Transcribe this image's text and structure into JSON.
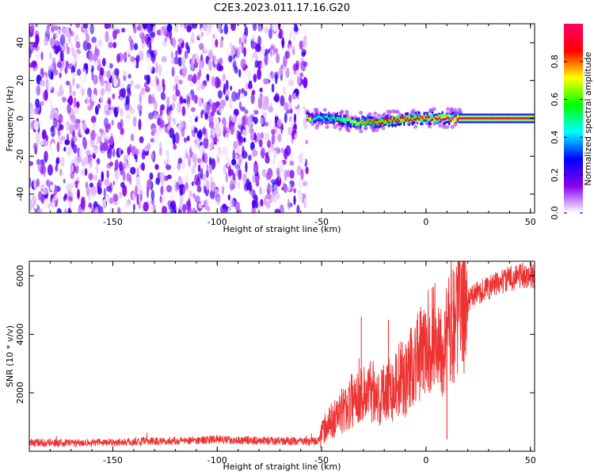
{
  "title": "C2E3.2023.011.17.16.G20",
  "chart_data": [
    {
      "type": "heatmap",
      "xlabel": "Height of straight line (km)",
      "ylabel": "Frequency (Hz)",
      "xlim": [
        -190,
        52
      ],
      "ylim": [
        -50,
        50
      ],
      "xticks": [
        -150,
        -100,
        -50,
        0,
        50
      ],
      "yticks": [
        -40,
        -20,
        0,
        20,
        40
      ],
      "colorbar": {
        "label": "Normalized spectral amplitude",
        "range": [
          0,
          1
        ],
        "ticks": [
          0.0,
          0.2,
          0.4,
          0.6,
          0.8
        ],
        "colormap": [
          "#ffffff",
          "#8800ee",
          "#0000ff",
          "#00ffff",
          "#00ff00",
          "#ffff00",
          "#ff0000",
          "#ff0066"
        ]
      },
      "noise_region": {
        "x_range": [
          -190,
          -57
        ],
        "freq_range": [
          -50,
          50
        ],
        "amplitude_range": [
          0.0,
          0.25
        ]
      },
      "signal_band": [
        {
          "x": -55,
          "freq": 0,
          "amplitude": 0.45
        },
        {
          "x": -45,
          "freq": 0,
          "amplitude": 0.5
        },
        {
          "x": -35,
          "freq": -2,
          "amplitude": 0.7
        },
        {
          "x": -25,
          "freq": -2,
          "amplitude": 0.85
        },
        {
          "x": -15,
          "freq": -1,
          "amplitude": 0.9
        },
        {
          "x": -5,
          "freq": 0,
          "amplitude": 0.9
        },
        {
          "x": 5,
          "freq": 0,
          "amplitude": 0.95
        },
        {
          "x": 15,
          "freq": 0,
          "amplitude": 1.0
        },
        {
          "x": 52,
          "freq": 0,
          "amplitude": 1.0
        }
      ]
    },
    {
      "type": "line",
      "xlabel": "Height of straight line (km)",
      "ylabel": "SNR (10 * v/v)",
      "xlim": [
        -190,
        52
      ],
      "ylim": [
        0,
        6500
      ],
      "xticks": [
        -150,
        -100,
        -50,
        0,
        50
      ],
      "yticks": [
        2000,
        4000,
        6000
      ],
      "color": "#ee3333",
      "series": [
        {
          "x": [
            -190,
            -180,
            -170,
            -160,
            -150,
            -140,
            -130,
            -120,
            -110,
            -100,
            -90,
            -80,
            -70,
            -60,
            -52,
            -50,
            -47,
            -44,
            -41,
            -38,
            -35,
            -32,
            -30,
            -28,
            -25,
            -22,
            -19,
            -16,
            -13,
            -10,
            -7,
            -4,
            -1,
            2,
            5,
            8,
            10,
            12,
            15,
            18,
            21,
            24,
            27,
            30,
            33,
            36,
            40,
            44,
            48,
            52
          ],
          "y": [
            300,
            280,
            290,
            300,
            310,
            320,
            340,
            360,
            380,
            400,
            380,
            360,
            350,
            340,
            330,
            600,
            900,
            1100,
            1300,
            1500,
            1800,
            2100,
            1900,
            2000,
            2200,
            1700,
            2300,
            2100,
            2500,
            2400,
            3000,
            3200,
            3400,
            3800,
            4000,
            3700,
            3800,
            4400,
            4800,
            5000,
            5200,
            5400,
            5500,
            5600,
            5700,
            5800,
            5900,
            6000,
            6000,
            6000
          ]
        }
      ],
      "spikes": [
        {
          "x": -31,
          "y": 4600
        },
        {
          "x": -18,
          "y": 4500
        },
        {
          "x": 3,
          "y": 5600
        },
        {
          "x": 10,
          "y": 400
        },
        {
          "x": 13,
          "y": 6200
        }
      ]
    }
  ]
}
